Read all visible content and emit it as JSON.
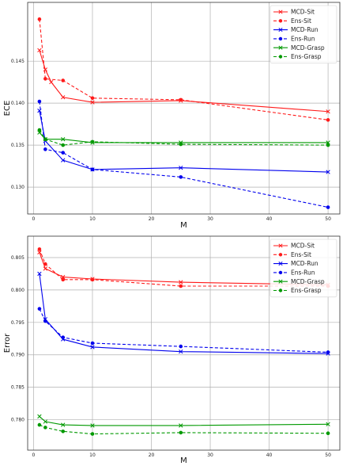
{
  "chart_data": [
    {
      "type": "line",
      "xlabel": "M",
      "ylabel": "ECE",
      "xlim": [
        -1,
        52
      ],
      "ylim": [
        0.1268,
        0.152
      ],
      "xticks": [
        0,
        10,
        20,
        30,
        40,
        50
      ],
      "yticks": [
        {
          "value": 0.13,
          "label": "0.130"
        },
        {
          "value": 0.135,
          "label": "0.135"
        },
        {
          "value": 0.14,
          "label": "0.140"
        },
        {
          "value": 0.145,
          "label": "0.145"
        }
      ],
      "grid": true,
      "legend_position": "top-right",
      "series": [
        {
          "name": "MCD-Sit",
          "color": "#ff1a1a",
          "dashed": false,
          "marker": "x",
          "x": [
            1,
            2,
            3,
            5,
            10,
            25,
            50
          ],
          "y": [
            0.1463,
            0.144,
            0.1425,
            0.1407,
            0.1401,
            0.1403,
            0.139
          ]
        },
        {
          "name": "Ens-Sit",
          "color": "#ff1a1a",
          "dashed": true,
          "marker": "o",
          "x": [
            1,
            2,
            5,
            10,
            25,
            50
          ],
          "y": [
            0.15,
            0.1429,
            0.1427,
            0.1406,
            0.1404,
            0.138
          ]
        },
        {
          "name": "MCD-Run",
          "color": "#0000ee",
          "dashed": false,
          "marker": "x",
          "x": [
            1,
            2,
            5,
            10,
            25,
            50
          ],
          "y": [
            0.1391,
            0.1355,
            0.1332,
            0.1321,
            0.1323,
            0.1318
          ]
        },
        {
          "name": "Ens-Run",
          "color": "#0000ee",
          "dashed": true,
          "marker": "o",
          "x": [
            1,
            2,
            5,
            10,
            25,
            50
          ],
          "y": [
            0.1402,
            0.1345,
            0.1341,
            0.1321,
            0.1312,
            0.1276
          ]
        },
        {
          "name": "MCD-Grasp",
          "color": "#009900",
          "dashed": false,
          "marker": "x",
          "x": [
            1,
            2,
            5,
            10,
            25,
            50
          ],
          "y": [
            0.1365,
            0.1357,
            0.1357,
            0.1353,
            0.1353,
            0.1353
          ]
        },
        {
          "name": "Ens-Grasp",
          "color": "#009900",
          "dashed": true,
          "marker": "o",
          "x": [
            1,
            2,
            5,
            10,
            25,
            50
          ],
          "y": [
            0.1368,
            0.1357,
            0.135,
            0.1354,
            0.1351,
            0.135
          ]
        }
      ]
    },
    {
      "type": "line",
      "xlabel": "M",
      "ylabel": "Error",
      "xlim": [
        -1,
        52
      ],
      "ylim": [
        0.7753,
        0.8083
      ],
      "xticks": [
        0,
        10,
        20,
        30,
        40,
        50
      ],
      "yticks": [
        {
          "value": 0.78,
          "label": "0.780"
        },
        {
          "value": 0.785,
          "label": "0.785"
        },
        {
          "value": 0.79,
          "label": "0.790"
        },
        {
          "value": 0.795,
          "label": "0.795"
        },
        {
          "value": 0.8,
          "label": "0.800"
        },
        {
          "value": 0.805,
          "label": "0.805"
        }
      ],
      "grid": true,
      "legend_position": "top-right",
      "series": [
        {
          "name": "MCD-Sit",
          "color": "#ff1a1a",
          "dashed": false,
          "marker": "x",
          "x": [
            1,
            2,
            5,
            10,
            25,
            50
          ],
          "y": [
            0.8058,
            0.8033,
            0.802,
            0.8017,
            0.8012,
            0.8008
          ]
        },
        {
          "name": "Ens-Sit",
          "color": "#ff1a1a",
          "dashed": true,
          "marker": "o",
          "x": [
            1,
            2,
            5,
            10,
            25,
            50
          ],
          "y": [
            0.8063,
            0.804,
            0.8016,
            0.8016,
            0.8006,
            0.8006
          ]
        },
        {
          "name": "MCD-Run",
          "color": "#0000ee",
          "dashed": false,
          "marker": "x",
          "x": [
            1,
            2,
            5,
            10,
            25,
            50
          ],
          "y": [
            0.8025,
            0.7955,
            0.7924,
            0.7912,
            0.7905,
            0.7902
          ]
        },
        {
          "name": "Ens-Run",
          "color": "#0000ee",
          "dashed": true,
          "marker": "o",
          "x": [
            1,
            2,
            5,
            10,
            25,
            50
          ],
          "y": [
            0.7971,
            0.7952,
            0.7927,
            0.7918,
            0.7913,
            0.7904
          ]
        },
        {
          "name": "MCD-Grasp",
          "color": "#009900",
          "dashed": false,
          "marker": "x",
          "x": [
            1,
            2,
            5,
            10,
            25,
            50
          ],
          "y": [
            0.7805,
            0.7797,
            0.7792,
            0.7791,
            0.7791,
            0.7793
          ]
        },
        {
          "name": "Ens-Grasp",
          "color": "#009900",
          "dashed": true,
          "marker": "o",
          "x": [
            1,
            2,
            5,
            10,
            25,
            50
          ],
          "y": [
            0.7792,
            0.7788,
            0.7782,
            0.7778,
            0.778,
            0.7779
          ]
        }
      ]
    }
  ]
}
